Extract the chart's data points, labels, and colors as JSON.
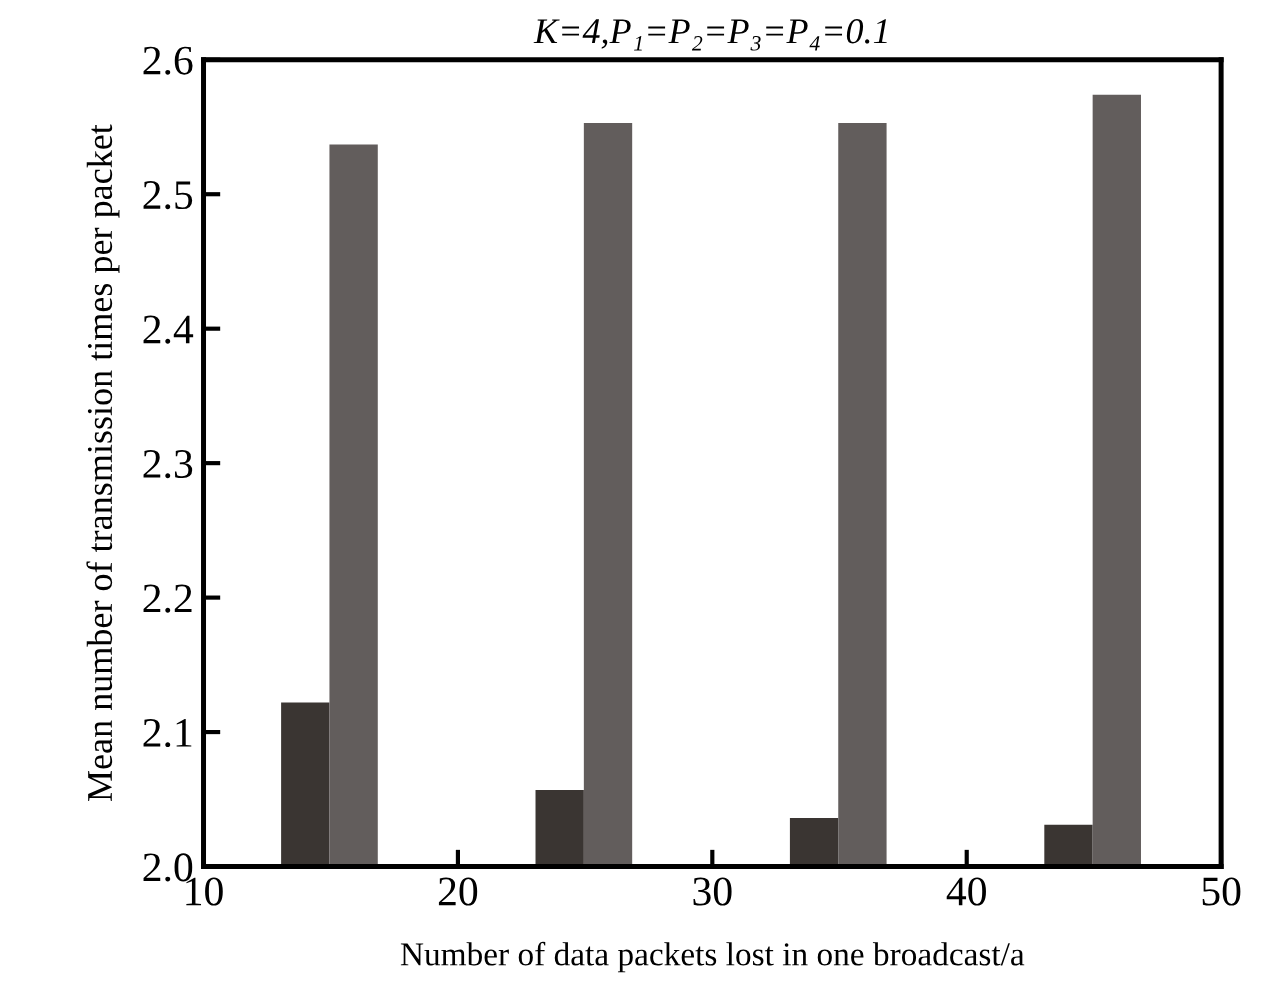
{
  "chart_data": {
    "type": "bar",
    "title": "K=4,P₁=P₂=P₃=P₄=0.1",
    "xlabel": "Number of data packets lost in one broadcast/a",
    "ylabel": "Mean number of transmission times per packet",
    "series": [
      {
        "color": "#3a3532",
        "x": [
          14,
          24,
          34,
          44
        ],
        "values": [
          2.122,
          2.057,
          2.036,
          2.031
        ]
      },
      {
        "color": "#625d5c",
        "x": [
          15.9,
          25.9,
          35.9,
          45.9
        ],
        "values": [
          2.537,
          2.553,
          2.553,
          2.574
        ]
      }
    ],
    "xlim": [
      10,
      50
    ],
    "xticks": [
      10,
      20,
      30,
      40,
      50
    ],
    "ylim": [
      2.0,
      2.6
    ],
    "yticks": [
      {
        "value": 2.0,
        "label": "2.0"
      },
      2.1,
      2.2,
      2.3,
      2.4,
      2.5,
      2.6
    ],
    "grid": false,
    "legend": false
  }
}
